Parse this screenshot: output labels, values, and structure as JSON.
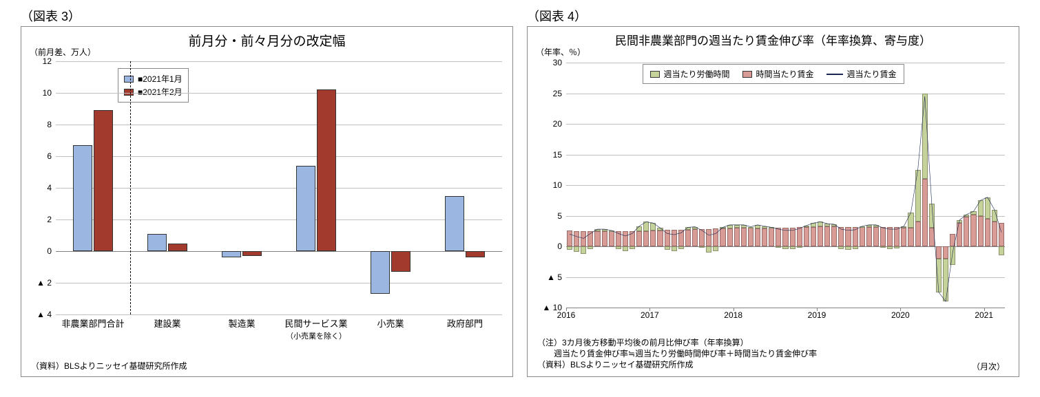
{
  "panel3": {
    "label": "（図表 3）",
    "title": "前月分・前々月分の改定幅",
    "y_unit": "（前月差、万人）",
    "source": "（資料）BLSよりニッセイ基礎研究所作成",
    "legend": [
      {
        "name": "■2021年1月",
        "color": "#9bb7e1"
      },
      {
        "name": "■2021年2月",
        "color": "#a23a2e"
      }
    ],
    "y_ticks": [
      -4,
      -2,
      0,
      2,
      4,
      6,
      8,
      10,
      12
    ],
    "neg_prefix": "▲ ",
    "categories": [
      {
        "label": "非農業部門合計",
        "v1": 6.7,
        "v2": 8.9
      },
      {
        "label": "建設業",
        "v1": 1.1,
        "v2": 0.5
      },
      {
        "label": "製造業",
        "v1": -0.4,
        "v2": -0.3
      },
      {
        "label": "民間サービス業",
        "sub": "（小売業を除く）",
        "v1": 5.4,
        "v2": 10.2
      },
      {
        "label": "小売業",
        "v1": -2.7,
        "v2": -1.3
      },
      {
        "label": "政府部門",
        "v1": 3.5,
        "v2": -0.4
      }
    ],
    "divider_after": 0,
    "bar_colors": {
      "s1": "#9bb7e1",
      "s2": "#a23a2e"
    },
    "ylim": [
      -4,
      12
    ]
  },
  "panel4": {
    "label": "（図表 4）",
    "title": "民間非農業部門の週当たり賃金伸び率（年率換算、寄与度）",
    "y_unit": "（年率、％）",
    "x_unit": "（月次）",
    "notes": [
      "（注）3カ月後方移動平均後の前月比伸び率（年率換算）",
      "　　週当たり賃金伸び率≒週当たり労働時間伸び率＋時間当たり賃金伸び率",
      "（資料）BLSよりニッセイ基礎研究所作成"
    ],
    "legend": {
      "hours": {
        "label": "週当たり労働時間",
        "color": "#c5d29a"
      },
      "wage": {
        "label": "時間当たり賃金",
        "color": "#d99b95"
      },
      "total": {
        "label": "週当たり賃金",
        "color": "#1a2854"
      }
    },
    "y_ticks": [
      -10,
      -5,
      0,
      5,
      10,
      15,
      20,
      25,
      30
    ],
    "neg_prefix": "▲ ",
    "ylim": [
      -10,
      30
    ],
    "x_years": [
      2016,
      2017,
      2018,
      2019,
      2020,
      2021
    ],
    "x_count": 63,
    "series": {
      "hours": [
        -0.6,
        -0.9,
        -1.2,
        -0.4,
        0.3,
        0.3,
        0.1,
        -0.4,
        -0.8,
        -0.4,
        0.8,
        1.5,
        1.2,
        0.4,
        -0.6,
        -0.8,
        -0.5,
        0.4,
        0.4,
        -0.2,
        -1.0,
        -0.8,
        0.2,
        0.6,
        0.5,
        0.5,
        0.2,
        0.6,
        0.4,
        0.1,
        -0.2,
        -0.4,
        -0.4,
        -0.2,
        0.3,
        0.6,
        0.7,
        0.4,
        0.3,
        -0.4,
        -0.6,
        -0.4,
        0.2,
        0.4,
        0.3,
        -0.2,
        -0.4,
        -0.3,
        0.3,
        2.5,
        8.5,
        14.0,
        4.0,
        -5.5,
        -7.0,
        -3.0,
        0.5,
        0.4,
        0.5,
        2.5,
        3.5,
        2.0,
        -1.5
      ],
      "wage": [
        2.6,
        2.5,
        2.5,
        2.5,
        2.5,
        2.5,
        2.5,
        2.5,
        2.5,
        2.5,
        2.5,
        2.5,
        2.6,
        2.6,
        2.7,
        2.7,
        2.7,
        2.7,
        2.8,
        2.8,
        2.8,
        2.9,
        2.9,
        2.9,
        3.0,
        3.0,
        3.0,
        2.9,
        2.9,
        3.0,
        3.0,
        3.0,
        3.0,
        3.1,
        3.1,
        3.2,
        3.3,
        3.3,
        3.3,
        3.2,
        3.2,
        3.1,
        3.1,
        3.1,
        3.2,
        3.2,
        3.2,
        3.1,
        3.0,
        3.0,
        4.0,
        11.0,
        3.0,
        -2.0,
        -2.0,
        2.0,
        3.8,
        4.8,
        5.2,
        5.0,
        4.5,
        4.0,
        3.8
      ],
      "total": [
        2.0,
        1.6,
        1.3,
        2.1,
        2.8,
        2.8,
        2.6,
        2.1,
        1.7,
        2.1,
        3.3,
        4.0,
        3.8,
        3.0,
        2.1,
        1.9,
        2.2,
        3.1,
        3.2,
        2.6,
        1.8,
        2.1,
        3.1,
        3.5,
        3.5,
        3.5,
        3.2,
        3.5,
        3.3,
        3.1,
        2.8,
        2.6,
        2.6,
        2.9,
        3.4,
        3.8,
        4.0,
        3.7,
        3.6,
        2.8,
        2.6,
        2.7,
        3.3,
        3.5,
        3.5,
        3.0,
        2.8,
        2.8,
        3.3,
        5.5,
        12.5,
        24.5,
        7.0,
        -7.5,
        -9.0,
        -1.0,
        4.3,
        5.2,
        5.7,
        7.5,
        8.0,
        6.0,
        2.3
      ]
    }
  }
}
